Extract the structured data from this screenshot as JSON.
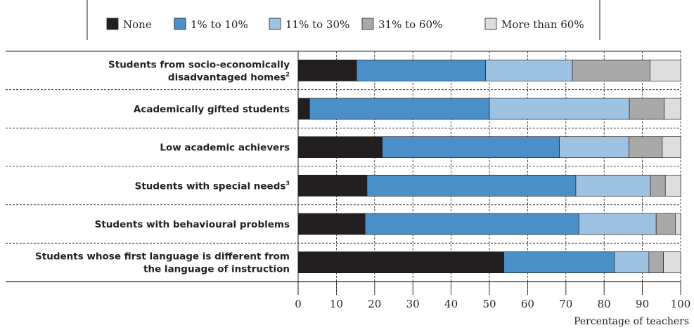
{
  "chart_data": {
    "type": "bar",
    "orientation": "horizontal",
    "stacked": true,
    "categories": [
      {
        "lines": [
          "Students from socio-economically",
          "disadvantaged homes"
        ],
        "sup": "2"
      },
      {
        "lines": [
          "Academically gifted students"
        ],
        "sup": ""
      },
      {
        "lines": [
          "Low academic achievers"
        ],
        "sup": ""
      },
      {
        "lines": [
          "Students with special needs"
        ],
        "sup": "3"
      },
      {
        "lines": [
          "Students with behavioural problems"
        ],
        "sup": ""
      },
      {
        "lines": [
          "Students whose first language is different from",
          "the language of instruction"
        ],
        "sup": ""
      }
    ],
    "series": [
      {
        "name": "None",
        "color": "#231f20",
        "values": [
          15.3,
          3.0,
          22.0,
          18.0,
          17.5,
          53.8
        ]
      },
      {
        "name": "1% to 10%",
        "color": "#4a8fc7",
        "values": [
          33.7,
          47.0,
          46.3,
          54.6,
          55.9,
          28.9
        ]
      },
      {
        "name": "11% to 30%",
        "color": "#9ec3e2",
        "values": [
          22.7,
          36.6,
          18.2,
          19.5,
          20.2,
          9.0
        ]
      },
      {
        "name": "31% to 60%",
        "color": "#a9a9a9",
        "values": [
          20.3,
          9.1,
          8.7,
          3.9,
          5.0,
          3.8
        ]
      },
      {
        "name": "More than 60%",
        "color": "#dededf",
        "values": [
          8.0,
          4.3,
          4.8,
          4.0,
          1.4,
          4.5
        ]
      }
    ],
    "xlabel": "Percentage of teachers",
    "xlim": [
      0,
      100
    ],
    "xticks": [
      0,
      10,
      20,
      30,
      40,
      50,
      60,
      70,
      80,
      90,
      100
    ],
    "legend_position": "top",
    "grid": "vertical"
  }
}
